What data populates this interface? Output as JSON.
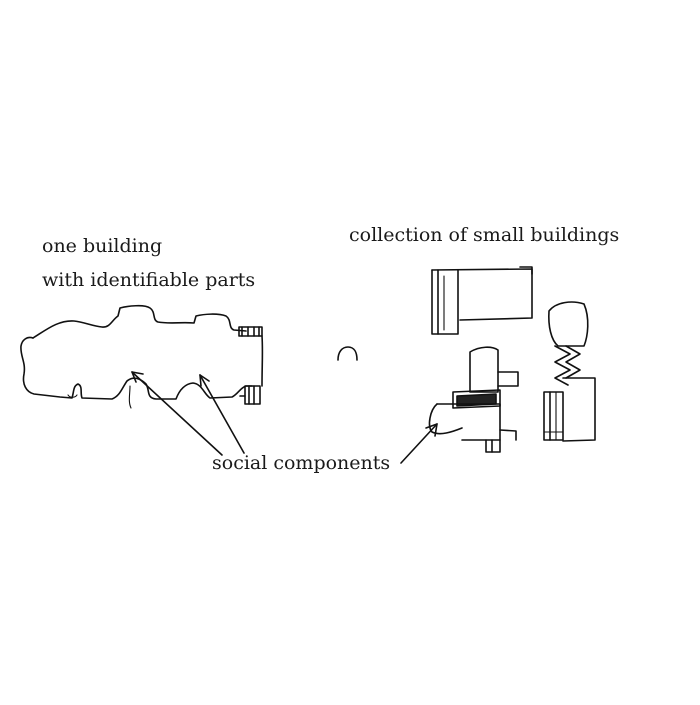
{
  "labels": {
    "one_building_line1": "one building",
    "one_building_line2": "with identifiable parts",
    "collection": "collection of small buildings",
    "social_components": "social components"
  }
}
